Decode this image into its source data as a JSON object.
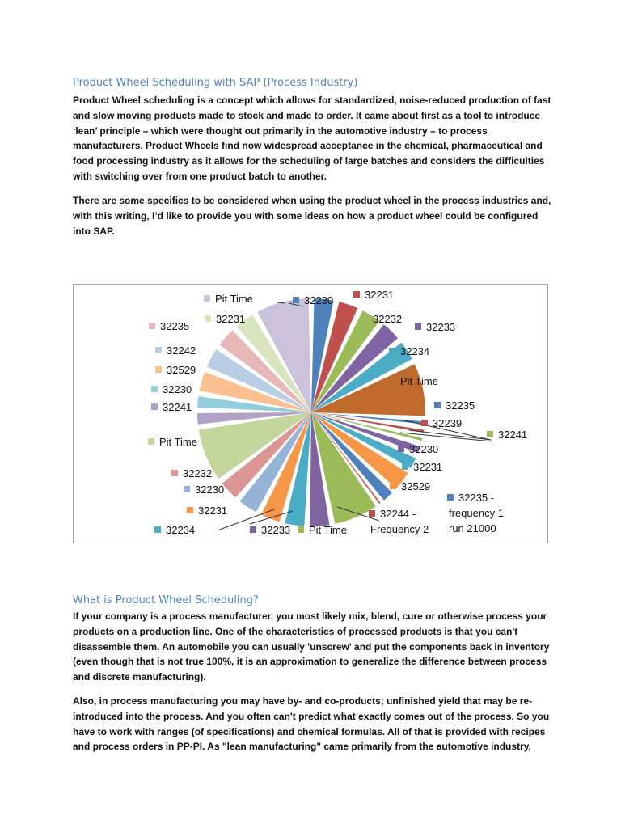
{
  "article": {
    "title": "Product Wheel Scheduling with SAP (Process Industry)",
    "intro_p1": "Product Wheel scheduling is a concept which allows for standardized, noise-reduced production of fast and slow moving products made to stock and made to order. It came about first as a tool to introduce ‘lean’ principle – which were thought out primarily in the automotive industry – to process manufacturers. Product Wheels find now widespread acceptance in the chemical, pharmaceutical and food processing industry as it allows for the scheduling of large batches and considers the difficulties with switching over from one product batch to another.",
    "intro_p2": "There are some specifics to be considered when using the product wheel in the process industries and, with this writing, I’d like to provide you with some ideas on how a product wheel could be configured into SAP.",
    "section_heading": "What is Product Wheel Scheduling?",
    "section_p1": "If your company is a process manufacturer, you most likely mix, blend, cure or otherwise process your products on a production line. One of the characteristics of processed products is that you can't disassemble them. An automobile you can usually 'unscrew' and put the components back in inventory (even though that is not true 100%, it is an approximation to generalize the difference between process and discrete manufacturing).",
    "section_p2": "Also, in process manufacturing you may have by- and co-products; unfinished yield that may be re-introduced into the process. And you often can't predict what exactly comes out of the process. So you have to work with ranges (of specifications) and chemical formulas. All of that is provided with recipes and process orders in PP-PI. As \"lean manufacturing\" came primarily from the automotive industry,"
  },
  "chart_data": {
    "type": "pie",
    "start": "12 o'clock",
    "direction": "clockwise",
    "slices": [
      {
        "label": "32230",
        "value": 3,
        "color": "#4f81bd"
      },
      {
        "label": "32231",
        "value": 3,
        "color": "#c0504d"
      },
      {
        "label": "32232",
        "value": 3,
        "color": "#9bbb59"
      },
      {
        "label": "32233",
        "value": 3,
        "color": "#8064a2"
      },
      {
        "label": "32234",
        "value": 3,
        "color": "#4bacc6"
      },
      {
        "label": "Pit Time",
        "value": 7,
        "color": "#c0692d"
      },
      {
        "label": "32235",
        "value": 1,
        "color": "#4f81bd"
      },
      {
        "label": "32239",
        "value": 1,
        "color": "#c0504d"
      },
      {
        "label": "32241",
        "value": 1,
        "color": "#9bbb59"
      },
      {
        "label": "32230",
        "value": 1.5,
        "color": "#8064a2"
      },
      {
        "label": "32231",
        "value": 2,
        "color": "#4bacc6"
      },
      {
        "label": "32529",
        "value": 3,
        "color": "#f79646"
      },
      {
        "label": "32235 - frequency 1 run 21000",
        "value": 2,
        "color": "#4f81bd"
      },
      {
        "label": "32244 - Frequency 2",
        "value": 0.5,
        "color": "#c0504d"
      },
      {
        "label": "Pit Time",
        "value": 6,
        "color": "#9bbb59"
      },
      {
        "label": "32233",
        "value": 3,
        "color": "#8064a2"
      },
      {
        "label": "32234",
        "value": 3,
        "color": "#4bacc6"
      },
      {
        "label": "32231",
        "value": 3,
        "color": "#f79646"
      },
      {
        "label": "32230",
        "value": 3,
        "color": "#95b3d7"
      },
      {
        "label": "32232",
        "value": 3,
        "color": "#d99694"
      },
      {
        "label": "Pit Time",
        "value": 7,
        "color": "#c3d69b"
      },
      {
        "label": "32241",
        "value": 2,
        "color": "#b2a1c7"
      },
      {
        "label": "32230",
        "value": 2,
        "color": "#93cddd"
      },
      {
        "label": "32529",
        "value": 3,
        "color": "#fac090"
      },
      {
        "label": "32242",
        "value": 3,
        "color": "#b9cde5"
      },
      {
        "label": "32235",
        "value": 3,
        "color": "#e6b9b8"
      },
      {
        "label": "32231",
        "value": 3,
        "color": "#d7e4bd"
      },
      {
        "label": "Pit Time",
        "value": 7,
        "color": "#ccc1da"
      }
    ]
  }
}
